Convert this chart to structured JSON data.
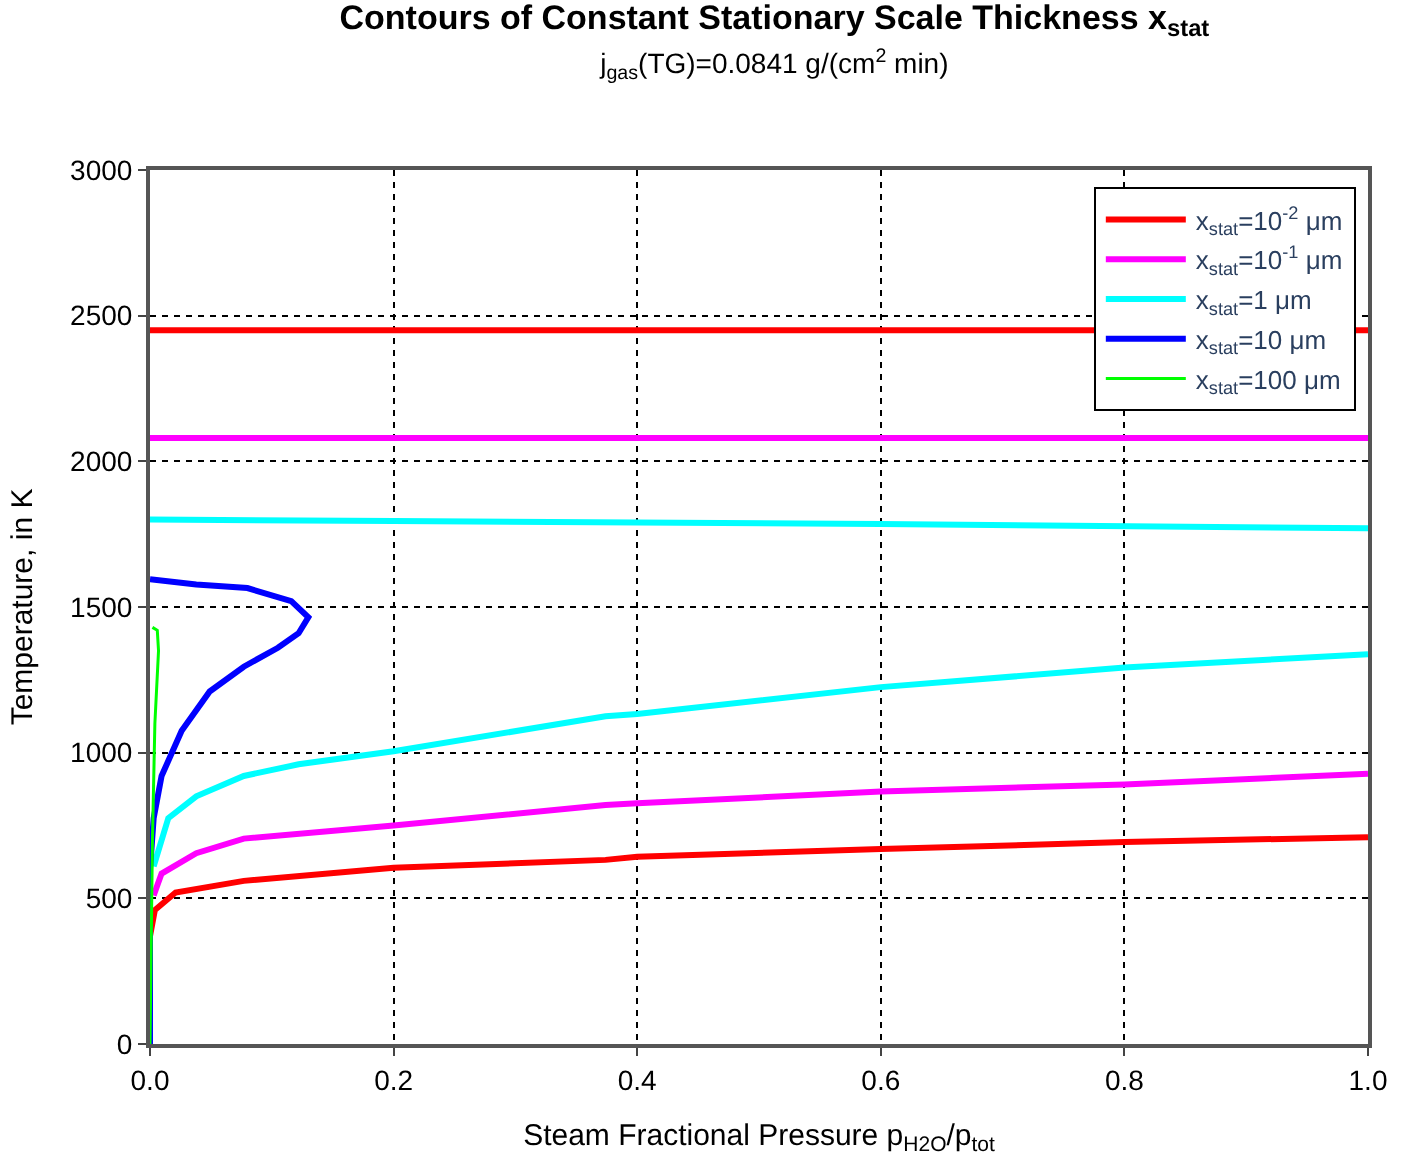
{
  "chart_data": {
    "type": "line",
    "title": "Contours of Constant Stationary Scale Thickness x$_{stat}$",
    "subtitle": "j$_{gas}$(TG)=0.0841 g/(cm$^{2}$ min)",
    "xlabel": "Steam Fractional Pressure p$_{H2O}$/p$_{tot}$",
    "ylabel": "Temperature, in K",
    "xlim": [
      0,
      1
    ],
    "ylim": [
      0,
      3000
    ],
    "xticks": [
      {
        "value": 0,
        "label": "0.0"
      },
      0.2,
      0.4,
      0.6,
      0.8,
      {
        "value": 1,
        "label": "1.0"
      }
    ],
    "yticks": [
      0,
      500,
      1000,
      1500,
      2000,
      2500,
      3000
    ],
    "grid": true,
    "legend": "top right",
    "line_style": "solid",
    "marker": "none",
    "series": [
      {
        "name": "x$_{stat}$=10$^{-2}$ μm",
        "color": "#ff0000",
        "x": [
          0,
          1,
          null,
          0,
          0.004,
          0.021,
          0.077,
          0.2,
          0.374,
          0.4,
          0.6,
          0.8,
          1
        ],
        "values": [
          2450,
          2450,
          null,
          370,
          460,
          520,
          560,
          605,
          632,
          643,
          669,
          693,
          710
        ]
      },
      {
        "name": "x$_{stat}$=10$^{-1}$ μm",
        "color": "#ff00ff",
        "x": [
          0,
          1,
          null,
          0.003,
          0.0095,
          0.038,
          0.077,
          0.2,
          0.374,
          0.4,
          0.6,
          0.8,
          1
        ],
        "values": [
          2080,
          2080,
          null,
          510,
          585,
          655,
          705,
          750,
          820,
          826,
          867,
          891,
          928
        ]
      },
      {
        "name": "x$_{stat}$=1 μm",
        "color": "#00ffff",
        "x": [
          0,
          0.2,
          0.6,
          1,
          null,
          0.003,
          0.015,
          0.038,
          0.077,
          0.122,
          0.2,
          0.374,
          0.4,
          0.6,
          0.8,
          1
        ],
        "values": [
          1800,
          1795,
          1785,
          1770,
          null,
          610,
          775,
          850,
          920,
          960,
          1005,
          1125,
          1133,
          1225,
          1292,
          1338
        ]
      },
      {
        "name": "x$_{stat}$=10 μm",
        "color": "#0000ff",
        "x": [
          0,
          0,
          0.003,
          0.0095,
          0.026,
          0.049,
          0.077,
          0.105,
          0.122,
          0.13,
          0.116,
          0.08,
          0.038,
          0
        ],
        "values": [
          0,
          600,
          775,
          920,
          1075,
          1210,
          1295,
          1360,
          1410,
          1465,
          1520,
          1565,
          1577,
          1595
        ]
      },
      {
        "name": "x$_{stat}$=100 μm",
        "color": "#00ff00",
        "x": [
          0,
          0.002,
          0.004,
          0.007,
          0.006,
          0.002
        ],
        "values": [
          0,
          700,
          1100,
          1350,
          1420,
          1430
        ]
      }
    ]
  }
}
